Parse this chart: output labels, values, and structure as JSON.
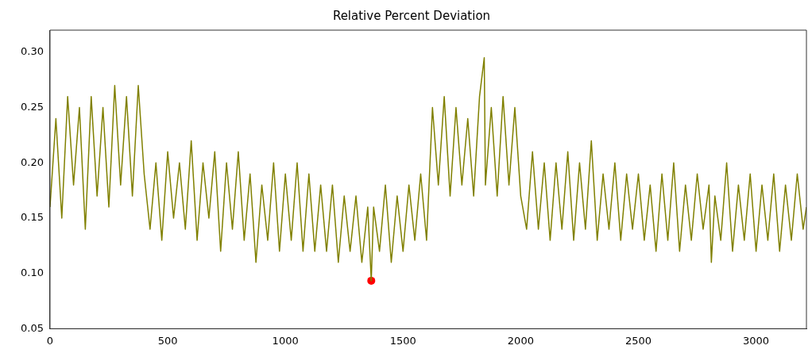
{
  "chart_data": {
    "type": "line",
    "title": "Relative Percent Deviation",
    "xlim": [
      0,
      3214
    ],
    "ylim": [
      0.05,
      0.32
    ],
    "xticks": [
      0,
      500,
      1000,
      1500,
      2000,
      2500,
      3000
    ],
    "yticks": [
      {
        "value": 0.05,
        "label": "0.05"
      },
      {
        "value": 0.1,
        "label": "0.10"
      },
      {
        "value": 0.15,
        "label": "0.15"
      },
      {
        "value": 0.2,
        "label": "0.20"
      },
      {
        "value": 0.25,
        "label": "0.25"
      },
      {
        "value": 0.3,
        "label": "0.30"
      }
    ],
    "grid": false,
    "legend": false,
    "series": [
      {
        "color": "#808000",
        "marker": "none",
        "x": [
          0,
          25,
          50,
          75,
          100,
          125,
          150,
          175,
          200,
          225,
          250,
          275,
          300,
          325,
          350,
          375,
          400,
          425,
          450,
          475,
          500,
          525,
          550,
          575,
          600,
          625,
          650,
          675,
          700,
          725,
          750,
          775,
          800,
          825,
          850,
          875,
          900,
          925,
          950,
          975,
          1000,
          1025,
          1050,
          1075,
          1100,
          1125,
          1150,
          1175,
          1200,
          1225,
          1250,
          1275,
          1300,
          1325,
          1350,
          1365,
          1375,
          1400,
          1425,
          1450,
          1475,
          1500,
          1525,
          1550,
          1575,
          1600,
          1625,
          1650,
          1675,
          1700,
          1725,
          1750,
          1775,
          1800,
          1825,
          1845,
          1850,
          1875,
          1900,
          1925,
          1950,
          1975,
          2000,
          2025,
          2050,
          2075,
          2100,
          2125,
          2150,
          2175,
          2200,
          2225,
          2250,
          2275,
          2300,
          2325,
          2350,
          2375,
          2400,
          2425,
          2450,
          2475,
          2500,
          2525,
          2550,
          2575,
          2600,
          2625,
          2650,
          2675,
          2700,
          2725,
          2750,
          2775,
          2800,
          2810,
          2825,
          2850,
          2875,
          2900,
          2925,
          2950,
          2975,
          3000,
          3025,
          3050,
          3075,
          3100,
          3125,
          3150,
          3175,
          3200,
          3214
        ],
        "values": [
          0.16,
          0.24,
          0.15,
          0.26,
          0.18,
          0.25,
          0.14,
          0.26,
          0.17,
          0.25,
          0.16,
          0.27,
          0.18,
          0.26,
          0.17,
          0.27,
          0.19,
          0.14,
          0.2,
          0.13,
          0.21,
          0.15,
          0.2,
          0.14,
          0.22,
          0.13,
          0.2,
          0.15,
          0.21,
          0.12,
          0.2,
          0.14,
          0.21,
          0.13,
          0.19,
          0.11,
          0.18,
          0.13,
          0.2,
          0.12,
          0.19,
          0.13,
          0.2,
          0.12,
          0.19,
          0.12,
          0.18,
          0.12,
          0.18,
          0.11,
          0.17,
          0.12,
          0.17,
          0.11,
          0.16,
          0.0934,
          0.16,
          0.12,
          0.18,
          0.11,
          0.17,
          0.12,
          0.18,
          0.13,
          0.19,
          0.13,
          0.25,
          0.18,
          0.26,
          0.17,
          0.25,
          0.18,
          0.24,
          0.17,
          0.26,
          0.295,
          0.18,
          0.25,
          0.17,
          0.26,
          0.18,
          0.25,
          0.17,
          0.14,
          0.21,
          0.14,
          0.2,
          0.13,
          0.2,
          0.14,
          0.21,
          0.13,
          0.2,
          0.14,
          0.22,
          0.13,
          0.19,
          0.14,
          0.2,
          0.13,
          0.19,
          0.14,
          0.19,
          0.13,
          0.18,
          0.12,
          0.19,
          0.13,
          0.2,
          0.12,
          0.18,
          0.13,
          0.19,
          0.14,
          0.18,
          0.11,
          0.17,
          0.13,
          0.2,
          0.12,
          0.18,
          0.13,
          0.19,
          0.12,
          0.18,
          0.13,
          0.19,
          0.12,
          0.18,
          0.13,
          0.19,
          0.14,
          0.16
        ]
      },
      {
        "type": "scatter",
        "color": "#ff0000",
        "marker": "circle",
        "x": [
          1365
        ],
        "values": [
          0.0934
        ]
      }
    ]
  }
}
